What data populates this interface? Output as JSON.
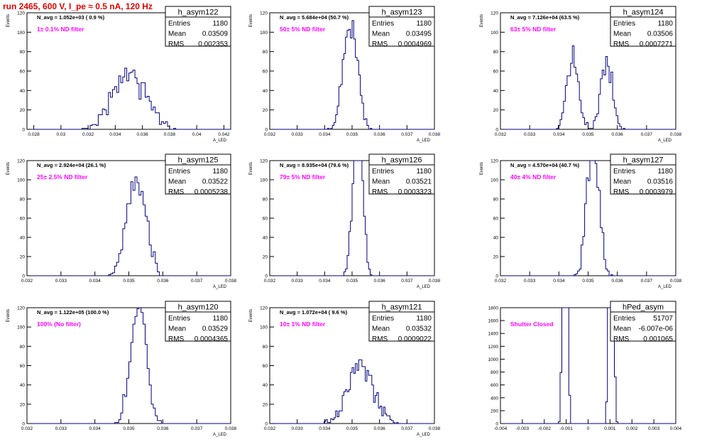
{
  "page": {
    "run_title": "run 2465,   600 V, I_pe ≈ 0.5 nA, 120 Hz"
  },
  "colors": {
    "histogram": "#00007f",
    "annotation": "#ff00ff",
    "run_title": "#e00000"
  },
  "chart_data": [
    {
      "type": "histogram",
      "histogram_name": "h_asym122",
      "ylabel": "Events",
      "xlabel": "A_LED",
      "navg_label": "N_avg = 1.052e+03 ( 0.9 %)",
      "filter_label": "1± 0.1% ND filter",
      "stats": {
        "entries": "1180",
        "mean": "0.03509",
        "rms": "0.002353"
      },
      "xlim": [
        0.0275,
        0.0425
      ],
      "ylim": [
        0,
        120
      ],
      "xticks": [
        "0.028",
        "0.03",
        "0.032",
        "0.034",
        "0.036",
        "0.038",
        "0.04",
        "0.042"
      ],
      "xtick_values": [
        0.028,
        0.03,
        0.032,
        0.034,
        0.036,
        0.038,
        0.04,
        0.042
      ],
      "yticks": [
        "0",
        "20",
        "40",
        "60",
        "80",
        "100",
        "120"
      ],
      "mean_value": 0.03509,
      "rms_value": 0.002353,
      "entries_value": 1180
    },
    {
      "type": "histogram",
      "histogram_name": "h_asym123",
      "ylabel": "Events",
      "xlabel": "A_LED",
      "navg_label": "N_avg = 5.684e+04 (50.7 %)",
      "filter_label": "50± 5% ND filter",
      "stats": {
        "entries": "1180",
        "mean": "0.03495",
        "rms": "0.0004969"
      },
      "xlim": [
        0.032,
        0.038
      ],
      "ylim": [
        0,
        120
      ],
      "xticks": [
        "0.032",
        "0.033",
        "0.034",
        "0.035",
        "0.036",
        "0.037",
        "0.038"
      ],
      "xtick_values": [
        0.032,
        0.033,
        0.034,
        0.035,
        0.036,
        0.037,
        0.038
      ],
      "yticks": [
        "0",
        "20",
        "40",
        "60",
        "80",
        "100",
        "120"
      ],
      "mean_value": 0.03495,
      "rms_value": 0.0004969,
      "entries_value": 1180
    },
    {
      "type": "histogram",
      "histogram_name": "h_asym124",
      "ylabel": "Events",
      "xlabel": "A_LED",
      "navg_label": "N_avg = 7.126e+04 (63.5 %)",
      "filter_label": "63± 5% ND filter",
      "stats": {
        "entries": "1180",
        "mean": "0.03506",
        "rms": "0.0007271"
      },
      "xlim": [
        0.032,
        0.038
      ],
      "ylim": [
        0,
        120
      ],
      "xticks": [
        "0.032",
        "0.033",
        "0.034",
        "0.035",
        "0.036",
        "0.037",
        "0.038"
      ],
      "xtick_values": [
        0.032,
        0.033,
        0.034,
        0.035,
        0.036,
        0.037,
        0.038
      ],
      "yticks": [
        "0",
        "20",
        "40",
        "60",
        "80",
        "100",
        "120"
      ],
      "mean_value": 0.03506,
      "rms_value": 0.0007271,
      "entries_value": 1180,
      "bimodal": [
        0.03448,
        0.03563
      ]
    },
    {
      "type": "histogram",
      "histogram_name": "h_asym125",
      "ylabel": "Events",
      "xlabel": "A_LED",
      "navg_label": "N_avg = 2.924e+04 (26.1 %)",
      "filter_label": "25± 2.5% ND filter",
      "stats": {
        "entries": "1180",
        "mean": "0.03522",
        "rms": "0.0005238"
      },
      "xlim": [
        0.032,
        0.038
      ],
      "ylim": [
        0,
        120
      ],
      "xticks": [
        "0.032",
        "0.033",
        "0.034",
        "0.035",
        "0.036",
        "0.037",
        "0.038"
      ],
      "xtick_values": [
        0.032,
        0.033,
        0.034,
        0.035,
        0.036,
        0.037,
        0.038
      ],
      "yticks": [
        "0",
        "20",
        "40",
        "60",
        "80",
        "100",
        "120"
      ],
      "mean_value": 0.03522,
      "rms_value": 0.0005238,
      "entries_value": 1180
    },
    {
      "type": "histogram",
      "histogram_name": "h_asym126",
      "ylabel": "Events",
      "xlabel": "A_LED",
      "navg_label": "N_avg = 8.935e+04 (79.6 %)",
      "filter_label": "79± 5% ND filter",
      "stats": {
        "entries": "1180",
        "mean": "0.03521",
        "rms": "0.0003323"
      },
      "xlim": [
        0.032,
        0.038
      ],
      "ylim": [
        0,
        120
      ],
      "xticks": [
        "0.032",
        "0.033",
        "0.034",
        "0.035",
        "0.036",
        "0.037",
        "0.038"
      ],
      "xtick_values": [
        0.032,
        0.033,
        0.034,
        0.035,
        0.036,
        0.037,
        0.038
      ],
      "yticks": [
        "0",
        "20",
        "40",
        "60",
        "80",
        "100",
        "120"
      ],
      "mean_value": 0.03521,
      "rms_value": 0.0003323,
      "entries_value": 1180
    },
    {
      "type": "histogram",
      "histogram_name": "h_asym127",
      "ylabel": "Events",
      "xlabel": "A_LED",
      "navg_label": "N_avg = 4.570e+04 (40.7 %)",
      "filter_label": "40± 4% ND filter",
      "stats": {
        "entries": "1180",
        "mean": "0.03516",
        "rms": "0.0003979"
      },
      "xlim": [
        0.032,
        0.038
      ],
      "ylim": [
        0,
        120
      ],
      "xticks": [
        "0.032",
        "0.033",
        "0.034",
        "0.035",
        "0.036",
        "0.037",
        "0.038"
      ],
      "xtick_values": [
        0.032,
        0.033,
        0.034,
        0.035,
        0.036,
        0.037,
        0.038
      ],
      "yticks": [
        "0",
        "20",
        "40",
        "60",
        "80",
        "100",
        "120"
      ],
      "mean_value": 0.03516,
      "rms_value": 0.0003979,
      "entries_value": 1180
    },
    {
      "type": "histogram",
      "histogram_name": "h_asym120",
      "ylabel": "Events",
      "xlabel": "A_LED",
      "navg_label": "N_avg = 1.122e+05 (100.0 %)",
      "filter_label": "100% (No filter)",
      "stats": {
        "entries": "1180",
        "mean": "0.03529",
        "rms": "0.0004365"
      },
      "xlim": [
        0.032,
        0.038
      ],
      "ylim": [
        0,
        120
      ],
      "xticks": [
        "0.032",
        "0.033",
        "0.034",
        "0.035",
        "0.036",
        "0.037",
        "0.038"
      ],
      "xtick_values": [
        0.032,
        0.033,
        0.034,
        0.035,
        0.036,
        0.037,
        0.038
      ],
      "yticks": [
        "0",
        "20",
        "40",
        "60",
        "80",
        "100",
        "120"
      ],
      "mean_value": 0.03529,
      "rms_value": 0.0004365,
      "entries_value": 1180
    },
    {
      "type": "histogram",
      "histogram_name": "h_asym121",
      "ylabel": "Events",
      "xlabel": "A_LED",
      "navg_label": "N_avg = 1.072e+04 ( 9.6 %)",
      "filter_label": "10± 1% ND filter",
      "stats": {
        "entries": "1180",
        "mean": "0.03532",
        "rms": "0.0009022"
      },
      "xlim": [
        0.032,
        0.038
      ],
      "ylim": [
        0,
        120
      ],
      "xticks": [
        "0.032",
        "0.033",
        "0.034",
        "0.035",
        "0.036",
        "0.037",
        "0.038"
      ],
      "xtick_values": [
        0.032,
        0.033,
        0.034,
        0.035,
        0.036,
        0.037,
        0.038
      ],
      "yticks": [
        "0",
        "20",
        "40",
        "60",
        "80",
        "100",
        "120"
      ],
      "mean_value": 0.03532,
      "rms_value": 0.0009022,
      "entries_value": 1180
    },
    {
      "type": "histogram",
      "histogram_name": "hPed_asym",
      "ylabel": "",
      "xlabel": "",
      "navg_label": "",
      "filter_label": "Shutter Closed",
      "stats": {
        "entries": "51707",
        "mean": "-6.007e-06",
        "rms": "0.001065"
      },
      "xlim": [
        -0.004,
        0.004
      ],
      "ylim": [
        0,
        1800
      ],
      "xticks": [
        "-0.004",
        "-0.003",
        "-0.002",
        "-0.001",
        "0",
        "0.001",
        "0.002",
        "0.003",
        "0.004"
      ],
      "xtick_values": [
        -0.004,
        -0.003,
        -0.002,
        -0.001,
        0,
        0.001,
        0.002,
        0.003,
        0.004
      ],
      "yticks": [
        "0",
        "200",
        "400",
        "600",
        "800",
        "1000",
        "1200",
        "1400",
        "1600",
        "1800"
      ],
      "mean_value": -6.007e-06,
      "rms_value": 0.001065,
      "entries_value": 51707,
      "bimodal": [
        -0.00105,
        0.00105
      ],
      "bimodal_depth": 0.7
    }
  ]
}
